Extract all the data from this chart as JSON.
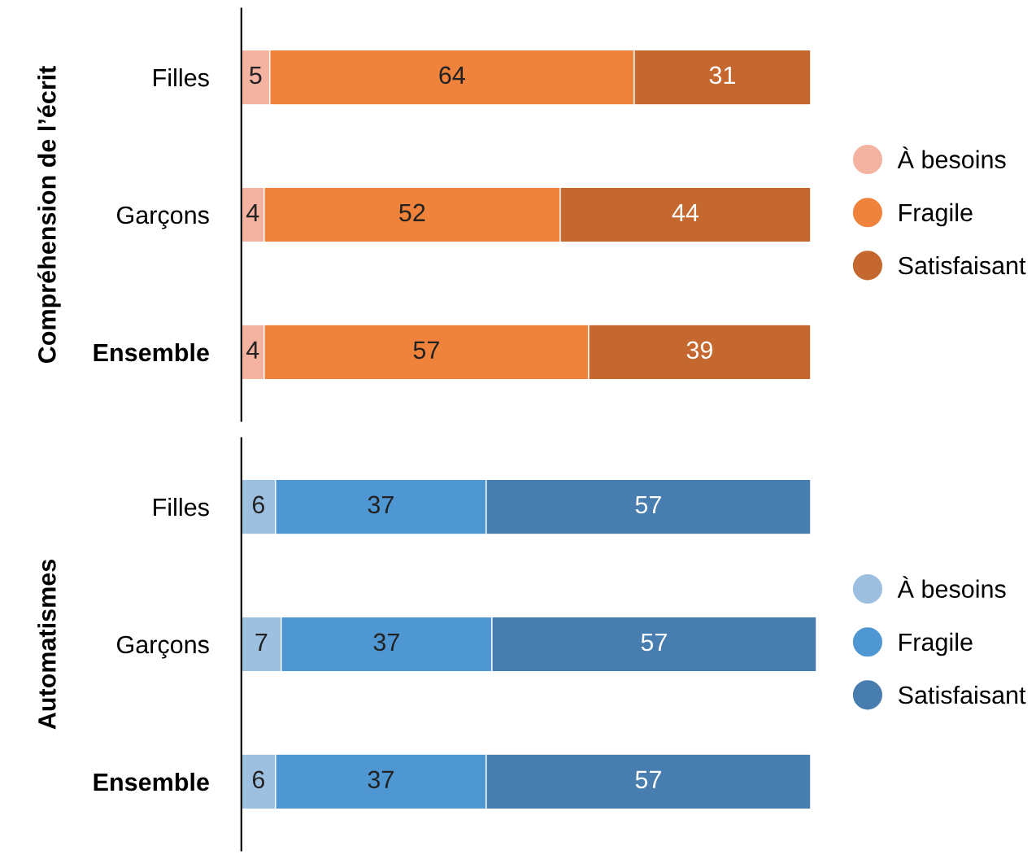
{
  "chart_data": [
    {
      "type": "bar",
      "orientation": "horizontal",
      "stacked": true,
      "ylabel": "Compréhension de l’écrit",
      "categories": [
        "Filles",
        "Garçons",
        "Ensemble"
      ],
      "xlim": [
        0,
        101
      ],
      "tick_labels": "y",
      "data_labels": true,
      "legend": "right",
      "marker": "circle",
      "series": [
        {
          "name": "À besoins",
          "color": "#f4b3a0",
          "values": [
            5,
            4,
            4
          ]
        },
        {
          "name": "Fragile",
          "color": "#f0833c",
          "values": [
            64,
            52,
            57
          ]
        },
        {
          "name": "Satisfaisant",
          "color": "#c4682f",
          "values": [
            31,
            44,
            39
          ]
        }
      ]
    },
    {
      "type": "bar",
      "orientation": "horizontal",
      "stacked": true,
      "ylabel": "Automatismes",
      "categories": [
        "Filles",
        "Garçons",
        "Ensemble"
      ],
      "xlim": [
        0,
        101
      ],
      "tick_labels": "y",
      "data_labels": true,
      "legend": "right",
      "marker": "circle",
      "series": [
        {
          "name": "À besoins",
          "color": "#9dbfe0",
          "values": [
            6,
            7,
            6
          ]
        },
        {
          "name": "Fragile",
          "color": "#4f97d3",
          "values": [
            37,
            37,
            37
          ]
        },
        {
          "name": "Satisfaisant",
          "color": "#487eaf",
          "values": [
            57,
            57,
            57
          ]
        }
      ]
    }
  ]
}
